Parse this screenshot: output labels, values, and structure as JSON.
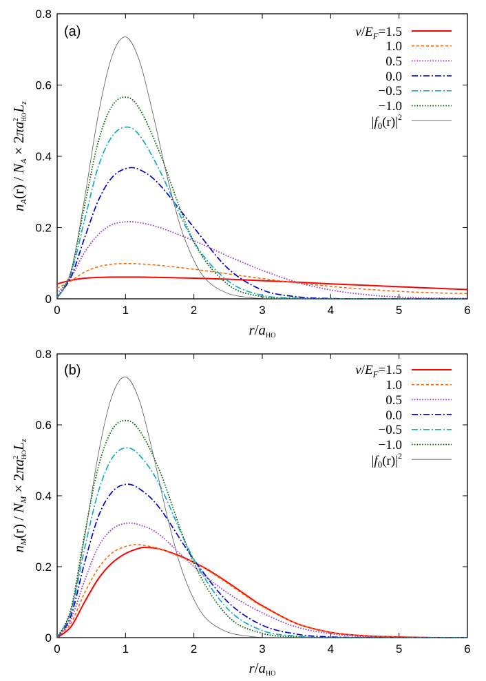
{
  "figure": {
    "panel_a_label": "(a)",
    "panel_b_label": "(b)"
  },
  "legend": {
    "nu_symbol": "ν",
    "slash": "/",
    "E_symbol": "E",
    "F_subscript": "F",
    "equals": "=",
    "f0_label_open": "|",
    "f0_label_f": "f",
    "f0_label_sub": "0",
    "f0_label_arg": "(r)",
    "f0_label_close": "|",
    "f0_label_sup": "2"
  },
  "axes": {
    "xlabel_r": "r",
    "xlabel_slash": "/",
    "xlabel_a": "a",
    "xlabel_sub": "HO",
    "ylabel_a": {
      "n": "n",
      "n_sub": "A",
      "r_arg": "(r)",
      "mid": " / ",
      "N": "N",
      "N_sub": "A",
      "times": " × 2",
      "pi": "π",
      "a": "a",
      "a_sup": "2",
      "a_sub": "HO",
      "L": "L",
      "L_sub": "z"
    },
    "ylabel_b": {
      "n": "n",
      "n_sub": "M",
      "r_arg": "(r)",
      "mid": " / ",
      "N": "N",
      "N_sub": "M",
      "times": " × 2",
      "pi": "π",
      "a": "a",
      "a_sup": "2",
      "a_sub": "HO",
      "L": "L",
      "L_sub": "z"
    }
  },
  "chart_data": [
    {
      "type": "line",
      "panel": "(a)",
      "title": "",
      "xlabel": "r/a_HO",
      "ylabel": "n_A(r) / N_A × 2πa_HO^2 L_z",
      "xlim": [
        0,
        6
      ],
      "ylim": [
        0,
        0.8
      ],
      "xticks": [
        "0",
        "1",
        "2",
        "3",
        "4",
        "5",
        "6"
      ],
      "yticks": [
        "0",
        "0.2",
        "0.4",
        "0.6",
        "0.8"
      ],
      "legend_position": "top-right",
      "series": [
        {
          "name": "1.5",
          "style": "solid",
          "color": "#ff0000",
          "x": [
            0,
            0.2,
            0.4,
            0.6,
            0.8,
            1.0,
            1.2,
            1.5,
            2.0,
            2.5,
            3.0,
            3.5,
            4.0,
            4.5,
            5.0,
            5.5,
            6.0
          ],
          "y": [
            0.042,
            0.052,
            0.058,
            0.06,
            0.061,
            0.061,
            0.061,
            0.06,
            0.058,
            0.055,
            0.051,
            0.047,
            0.042,
            0.038,
            0.034,
            0.03,
            0.026
          ]
        },
        {
          "name": "1.0",
          "style": "dashed",
          "color": "#ff6600",
          "x": [
            0,
            0.2,
            0.4,
            0.6,
            0.8,
            1.0,
            1.2,
            1.5,
            2.0,
            2.5,
            3.0,
            3.5,
            4.0,
            4.5,
            5.0,
            5.5,
            6.0
          ],
          "y": [
            0.03,
            0.05,
            0.075,
            0.09,
            0.097,
            0.099,
            0.098,
            0.094,
            0.083,
            0.07,
            0.057,
            0.045,
            0.035,
            0.027,
            0.021,
            0.017,
            0.015
          ]
        },
        {
          "name": "0.5",
          "style": "dotted",
          "color": "#9933cc",
          "x": [
            0,
            0.2,
            0.4,
            0.6,
            0.8,
            1.0,
            1.2,
            1.5,
            2.0,
            2.5,
            3.0,
            3.5,
            4.0,
            4.5,
            5.0,
            5.5,
            6.0
          ],
          "y": [
            0.015,
            0.06,
            0.13,
            0.18,
            0.208,
            0.216,
            0.214,
            0.2,
            0.163,
            0.12,
            0.08,
            0.047,
            0.025,
            0.012,
            0.005,
            0.002,
            0.001
          ]
        },
        {
          "name": "0.0",
          "style": "dashdot",
          "color": "#0000cc",
          "x": [
            0,
            0.2,
            0.4,
            0.6,
            0.8,
            1.0,
            1.2,
            1.5,
            2.0,
            2.5,
            3.0,
            3.5,
            4.0,
            4.5,
            5.0,
            6.0
          ],
          "y": [
            0.005,
            0.06,
            0.17,
            0.275,
            0.34,
            0.365,
            0.363,
            0.32,
            0.2,
            0.085,
            0.025,
            0.006,
            0.001,
            0.0,
            0.0,
            0.0
          ]
        },
        {
          "name": "−0.5",
          "style": "dashdot",
          "color": "#11aacc",
          "x": [
            0,
            0.2,
            0.4,
            0.6,
            0.8,
            1.0,
            1.2,
            1.5,
            2.0,
            2.5,
            3.0,
            3.5,
            4.0,
            5.0,
            6.0
          ],
          "y": [
            0.004,
            0.07,
            0.22,
            0.37,
            0.455,
            0.482,
            0.46,
            0.36,
            0.16,
            0.05,
            0.01,
            0.002,
            0.0,
            0.0,
            0.0
          ]
        },
        {
          "name": "−1.0",
          "style": "dotted",
          "color": "#006600",
          "x": [
            0,
            0.2,
            0.4,
            0.6,
            0.8,
            1.0,
            1.2,
            1.5,
            2.0,
            2.5,
            3.0,
            3.5,
            4.0,
            5.0,
            6.0
          ],
          "y": [
            0.003,
            0.075,
            0.26,
            0.44,
            0.54,
            0.566,
            0.535,
            0.41,
            0.16,
            0.04,
            0.006,
            0.001,
            0.0,
            0.0,
            0.0
          ]
        },
        {
          "name": "|f0(r)|^2",
          "style": "thin",
          "color": "#555555",
          "x": [
            0,
            0.2,
            0.4,
            0.6,
            0.8,
            1.0,
            1.2,
            1.4,
            1.6,
            1.8,
            2.0,
            2.2,
            2.5,
            2.8,
            3.0,
            3.5,
            4.0,
            6.0
          ],
          "y": [
            0.0,
            0.075,
            0.28,
            0.515,
            0.68,
            0.735,
            0.67,
            0.52,
            0.35,
            0.205,
            0.108,
            0.05,
            0.015,
            0.004,
            0.001,
            0.0,
            0.0,
            0.0
          ]
        }
      ]
    },
    {
      "type": "line",
      "panel": "(b)",
      "title": "",
      "xlabel": "r/a_HO",
      "ylabel": "n_M(r) / N_M × 2πa_HO^2 L_z",
      "xlim": [
        0,
        6
      ],
      "ylim": [
        0,
        0.8
      ],
      "xticks": [
        "0",
        "1",
        "2",
        "3",
        "4",
        "5",
        "6"
      ],
      "yticks": [
        "0",
        "0.2",
        "0.4",
        "0.6",
        "0.8"
      ],
      "legend_position": "top-right",
      "series": [
        {
          "name": "1.5",
          "style": "solid",
          "color": "#ff0000",
          "x": [
            0,
            0.2,
            0.4,
            0.6,
            0.8,
            1.0,
            1.2,
            1.3,
            1.5,
            1.8,
            2.0,
            2.2,
            2.5,
            2.8,
            3.0,
            3.5,
            4.0,
            4.5,
            5.0,
            5.5,
            6.0
          ],
          "y": [
            0.0,
            0.03,
            0.1,
            0.165,
            0.21,
            0.237,
            0.252,
            0.254,
            0.25,
            0.23,
            0.212,
            0.192,
            0.155,
            0.115,
            0.09,
            0.04,
            0.015,
            0.005,
            0.002,
            0.0,
            0.0
          ]
        },
        {
          "name": "1.0",
          "style": "dashed",
          "color": "#ff6600",
          "x": [
            0,
            0.2,
            0.4,
            0.6,
            0.8,
            1.0,
            1.2,
            1.5,
            1.8,
            2.0,
            2.2,
            2.5,
            2.8,
            3.0,
            3.5,
            4.0,
            4.5,
            5.0,
            5.5,
            6.0
          ],
          "y": [
            0.0,
            0.04,
            0.125,
            0.195,
            0.238,
            0.257,
            0.262,
            0.25,
            0.228,
            0.212,
            0.19,
            0.152,
            0.112,
            0.088,
            0.04,
            0.015,
            0.005,
            0.002,
            0.0,
            0.0
          ]
        },
        {
          "name": "0.5",
          "style": "dotted",
          "color": "#9933cc",
          "x": [
            0,
            0.2,
            0.4,
            0.6,
            0.8,
            1.0,
            1.2,
            1.5,
            2.0,
            2.5,
            3.0,
            3.5,
            4.0,
            4.5,
            5.0,
            6.0
          ],
          "y": [
            0.0,
            0.05,
            0.16,
            0.255,
            0.305,
            0.322,
            0.318,
            0.29,
            0.2,
            0.125,
            0.07,
            0.03,
            0.011,
            0.003,
            0.001,
            0.0
          ]
        },
        {
          "name": "0.0",
          "style": "dashdot",
          "color": "#0000cc",
          "x": [
            0,
            0.2,
            0.4,
            0.6,
            0.8,
            1.0,
            1.2,
            1.5,
            2.0,
            2.5,
            3.0,
            3.5,
            4.0,
            5.0,
            6.0
          ],
          "y": [
            0.0,
            0.06,
            0.21,
            0.34,
            0.41,
            0.432,
            0.42,
            0.365,
            0.22,
            0.1,
            0.035,
            0.01,
            0.002,
            0.0,
            0.0
          ]
        },
        {
          "name": "−0.5",
          "style": "dashdot",
          "color": "#11aacc",
          "x": [
            0,
            0.2,
            0.4,
            0.6,
            0.8,
            1.0,
            1.2,
            1.5,
            2.0,
            2.5,
            3.0,
            3.5,
            4.0,
            5.0,
            6.0
          ],
          "y": [
            0.0,
            0.07,
            0.25,
            0.41,
            0.505,
            0.535,
            0.515,
            0.43,
            0.22,
            0.08,
            0.02,
            0.004,
            0.0,
            0.0,
            0.0
          ]
        },
        {
          "name": "−1.0",
          "style": "dotted",
          "color": "#006600",
          "x": [
            0,
            0.2,
            0.4,
            0.6,
            0.8,
            1.0,
            1.2,
            1.5,
            2.0,
            2.5,
            3.0,
            3.5,
            4.0,
            5.0,
            6.0
          ],
          "y": [
            0.0,
            0.08,
            0.29,
            0.48,
            0.585,
            0.612,
            0.585,
            0.47,
            0.21,
            0.06,
            0.012,
            0.002,
            0.0,
            0.0,
            0.0
          ]
        },
        {
          "name": "|f0(r)|^2",
          "style": "thin",
          "color": "#555555",
          "x": [
            0,
            0.2,
            0.4,
            0.6,
            0.8,
            1.0,
            1.2,
            1.4,
            1.6,
            1.8,
            2.0,
            2.2,
            2.5,
            2.8,
            3.0,
            3.5,
            4.0,
            6.0
          ],
          "y": [
            0.0,
            0.075,
            0.28,
            0.515,
            0.68,
            0.735,
            0.67,
            0.52,
            0.35,
            0.205,
            0.108,
            0.05,
            0.015,
            0.004,
            0.001,
            0.0,
            0.0,
            0.0
          ]
        }
      ]
    }
  ]
}
